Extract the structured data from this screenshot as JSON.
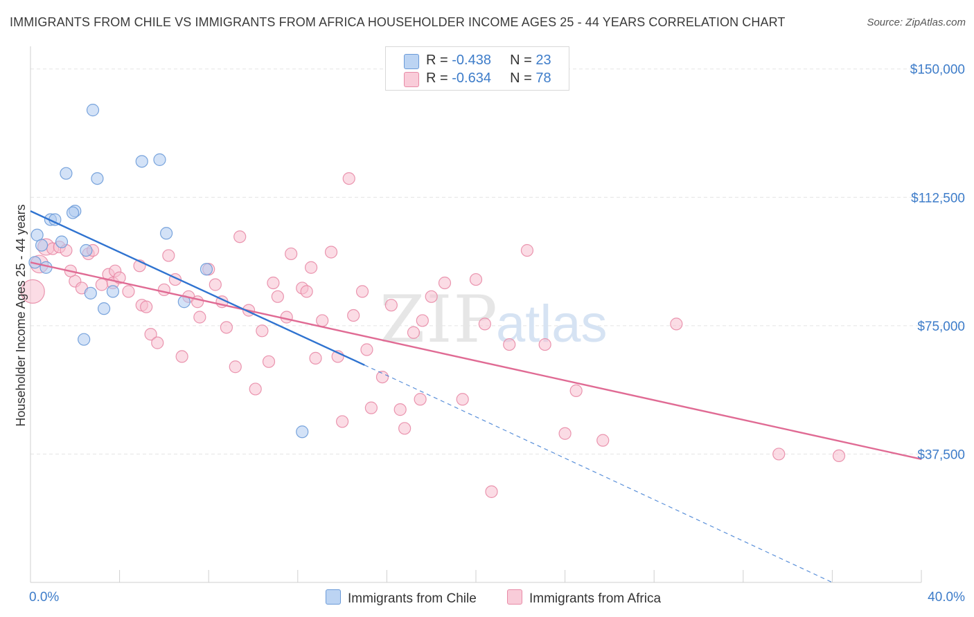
{
  "header": {
    "title": "IMMIGRANTS FROM CHILE VS IMMIGRANTS FROM AFRICA HOUSEHOLDER INCOME AGES 25 - 44 YEARS CORRELATION CHART",
    "source": "Source: ZipAtlas.com"
  },
  "legend": {
    "chile": {
      "r_label": "R = ",
      "r_value": "-0.438",
      "n_label": "N = ",
      "n_value": "23"
    },
    "africa": {
      "r_label": "R = ",
      "r_value": "-0.634",
      "n_label": "N = ",
      "n_value": "78"
    }
  },
  "bottom_legend": {
    "chile": "Immigrants from Chile",
    "africa": "Immigrants from Africa"
  },
  "watermark": {
    "zip": "ZIP",
    "atlas": "atlas"
  },
  "colors": {
    "chile_fill": "#aecbf0",
    "chile_stroke": "#6a9ad8",
    "chile_line": "#2f73d0",
    "africa_fill": "#f7c0cf",
    "africa_stroke": "#e88aa6",
    "africa_line": "#e06b94",
    "tick_text": "#3d7cc9",
    "grid": "#e3e3e3"
  },
  "chart_data": {
    "type": "scatter",
    "title": "IMMIGRANTS FROM CHILE VS IMMIGRANTS FROM AFRICA HOUSEHOLDER INCOME AGES 25 - 44 YEARS CORRELATION CHART",
    "xlabel": "",
    "ylabel": "Householder Income Ages 25 - 44 years",
    "xlim": [
      0,
      40
    ],
    "ylim": [
      0,
      155000
    ],
    "x_tick_labels": [
      "0.0%",
      "40.0%"
    ],
    "y_ticks": [
      37500,
      75000,
      112500,
      150000
    ],
    "y_tick_labels": [
      "$37,500",
      "$75,000",
      "$112,500",
      "$150,000"
    ],
    "grid": true,
    "legend_position": "top-center",
    "series": [
      {
        "name": "Immigrants from Chile",
        "r": -0.438,
        "n": 23,
        "trend": {
          "x0": 0,
          "y0": 108500,
          "x1": 15,
          "y1": 63500,
          "dashed_to_x": 36,
          "dashed_to_y": 0
        },
        "points": [
          [
            0.2,
            93500,
            1.0
          ],
          [
            0.3,
            101500,
            1.0
          ],
          [
            0.5,
            98500,
            1.0
          ],
          [
            0.7,
            92000,
            1.0
          ],
          [
            0.9,
            106000,
            1.0
          ],
          [
            1.1,
            106000,
            1.0
          ],
          [
            1.4,
            99500,
            1.0
          ],
          [
            1.6,
            119500,
            1.0
          ],
          [
            2.0,
            108500,
            1.0
          ],
          [
            2.5,
            97000,
            1.0
          ],
          [
            1.9,
            108000,
            1.0
          ],
          [
            2.8,
            138000,
            1.0
          ],
          [
            3.0,
            118000,
            1.0
          ],
          [
            2.7,
            84500,
            1.0
          ],
          [
            3.3,
            80000,
            1.0
          ],
          [
            3.7,
            85000,
            1.0
          ],
          [
            5.0,
            123000,
            1.0
          ],
          [
            5.8,
            123500,
            1.0
          ],
          [
            6.1,
            102000,
            1.0
          ],
          [
            6.9,
            82000,
            1.0
          ],
          [
            7.9,
            91500,
            1.0
          ],
          [
            12.2,
            44000,
            1.0
          ],
          [
            2.4,
            71000,
            1.0
          ]
        ]
      },
      {
        "name": "Immigrants from Africa",
        "r": -0.634,
        "n": 78,
        "trend": {
          "x0": 0,
          "y0": 93500,
          "x1": 40,
          "y1": 36000
        },
        "points": [
          [
            0.1,
            85000,
            2.0
          ],
          [
            0.4,
            93000,
            1.5
          ],
          [
            0.7,
            98000,
            1.4
          ],
          [
            1.0,
            97500,
            1.0
          ],
          [
            1.3,
            98000,
            1.0
          ],
          [
            1.6,
            97000,
            1.0
          ],
          [
            2.0,
            88000,
            1.0
          ],
          [
            2.3,
            86000,
            1.0
          ],
          [
            2.6,
            96000,
            1.0
          ],
          [
            2.8,
            97000,
            1.0
          ],
          [
            3.2,
            87000,
            1.0
          ],
          [
            3.5,
            90000,
            1.0
          ],
          [
            3.7,
            87500,
            1.0
          ],
          [
            3.8,
            91000,
            1.0
          ],
          [
            4.0,
            89000,
            1.0
          ],
          [
            4.4,
            85000,
            1.0
          ],
          [
            4.9,
            92500,
            1.0
          ],
          [
            5.0,
            81000,
            1.0
          ],
          [
            5.2,
            80500,
            1.0
          ],
          [
            5.4,
            72500,
            1.0
          ],
          [
            5.7,
            70000,
            1.0
          ],
          [
            6.0,
            85500,
            1.0
          ],
          [
            6.2,
            95500,
            1.0
          ],
          [
            6.5,
            88500,
            1.0
          ],
          [
            6.8,
            66000,
            1.0
          ],
          [
            7.1,
            83500,
            1.0
          ],
          [
            7.5,
            82000,
            1.0
          ],
          [
            7.6,
            77500,
            1.0
          ],
          [
            8.0,
            91500,
            1.0
          ],
          [
            8.3,
            87000,
            1.0
          ],
          [
            8.6,
            82000,
            1.0
          ],
          [
            8.8,
            74500,
            1.0
          ],
          [
            9.2,
            63000,
            1.0
          ],
          [
            9.4,
            101000,
            1.0
          ],
          [
            9.8,
            79500,
            1.0
          ],
          [
            10.1,
            56500,
            1.0
          ],
          [
            10.4,
            73500,
            1.0
          ],
          [
            10.7,
            64500,
            1.0
          ],
          [
            10.9,
            87500,
            1.0
          ],
          [
            11.1,
            83500,
            1.0
          ],
          [
            11.5,
            77500,
            1.0
          ],
          [
            11.7,
            96000,
            1.0
          ],
          [
            12.2,
            86000,
            1.0
          ],
          [
            12.4,
            85000,
            1.0
          ],
          [
            12.6,
            92000,
            1.0
          ],
          [
            12.8,
            65500,
            1.0
          ],
          [
            13.1,
            76500,
            1.0
          ],
          [
            13.5,
            96500,
            1.0
          ],
          [
            13.8,
            66000,
            1.0
          ],
          [
            14.0,
            47000,
            1.0
          ],
          [
            14.3,
            118000,
            1.0
          ],
          [
            14.5,
            78000,
            1.0
          ],
          [
            14.9,
            85000,
            1.0
          ],
          [
            15.1,
            68000,
            1.0
          ],
          [
            15.3,
            51000,
            1.0
          ],
          [
            15.8,
            60000,
            1.0
          ],
          [
            16.2,
            81000,
            1.0
          ],
          [
            16.6,
            50500,
            1.0
          ],
          [
            16.8,
            45000,
            1.0
          ],
          [
            17.2,
            73000,
            1.0
          ],
          [
            17.5,
            53500,
            1.0
          ],
          [
            17.6,
            76500,
            1.0
          ],
          [
            18.0,
            83500,
            1.0
          ],
          [
            18.6,
            87500,
            1.0
          ],
          [
            19.4,
            53500,
            1.0
          ],
          [
            20.0,
            88500,
            1.0
          ],
          [
            20.4,
            75500,
            1.0
          ],
          [
            20.7,
            26500,
            1.0
          ],
          [
            21.5,
            69500,
            1.0
          ],
          [
            22.3,
            97000,
            1.0
          ],
          [
            23.1,
            69500,
            1.0
          ],
          [
            24.0,
            43500,
            1.0
          ],
          [
            24.5,
            56000,
            1.0
          ],
          [
            25.7,
            41500,
            1.0
          ],
          [
            29.0,
            75500,
            1.0
          ],
          [
            33.6,
            37500,
            1.0
          ],
          [
            36.3,
            37000,
            1.0
          ],
          [
            1.8,
            91000,
            1.0
          ]
        ]
      }
    ]
  }
}
